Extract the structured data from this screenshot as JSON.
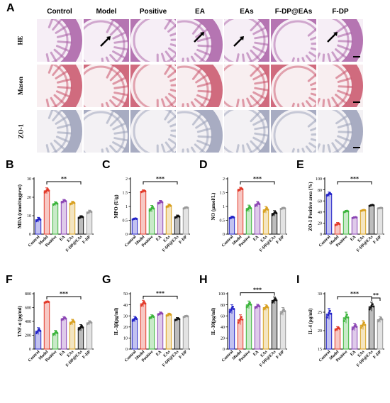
{
  "panel_a": {
    "letter": "A",
    "columns": [
      "Control",
      "Model",
      "Positive",
      "EA",
      "EAs",
      "F-DP@EAs",
      "F-DP"
    ],
    "rows": [
      {
        "label": "HE",
        "stain": "he"
      },
      {
        "label": "Mason",
        "stain": "masson"
      },
      {
        "label": "ZO-1",
        "stain": "zo1"
      }
    ],
    "arrow_tiles": [
      [
        0,
        1
      ],
      [
        0,
        1
      ],
      [
        0,
        3
      ],
      [
        0,
        3
      ],
      [
        0,
        4
      ],
      [
        0,
        6
      ],
      [
        0,
        6
      ]
    ],
    "stain_colors": {
      "he": "#a95fa6",
      "masson": "#c9536a",
      "zo1": "#9aa0b8"
    }
  },
  "categories": [
    "Control",
    "Model",
    "Positive",
    "EA",
    "EAs",
    "F-DP@EAs",
    "F-DP"
  ],
  "group_colors": [
    "#2323c8",
    "#e23a2a",
    "#3cb43c",
    "#8c46b4",
    "#d8a020",
    "#111111",
    "#9a9a9a"
  ],
  "chart_data": [
    {
      "letter": "B",
      "type": "bar",
      "ylabel": "MDA (nmol/mgprot)",
      "ylim": [
        0,
        30
      ],
      "yticks": [
        0,
        10,
        20,
        30
      ],
      "values": [
        7.8,
        23.5,
        16.5,
        17.8,
        16.8,
        9.2,
        12.0
      ],
      "errors": [
        1.3,
        1.6,
        1.0,
        1.0,
        1.0,
        0.8,
        1.0
      ],
      "significance": [
        {
          "from": 1,
          "to": 5,
          "label": "**"
        }
      ]
    },
    {
      "letter": "C",
      "type": "bar",
      "ylabel": "MPO (U/g)",
      "ylim": [
        0,
        2.0
      ],
      "yticks": [
        0.0,
        0.5,
        1.0,
        1.5,
        2.0
      ],
      "values": [
        0.55,
        1.55,
        0.92,
        1.15,
        1.02,
        0.63,
        0.95
      ],
      "errors": [
        0.03,
        0.05,
        0.12,
        0.07,
        0.07,
        0.06,
        0.04
      ],
      "significance": [
        {
          "from": 1,
          "to": 5,
          "label": "***"
        }
      ]
    },
    {
      "letter": "D",
      "type": "bar",
      "ylabel": "NO (μmol/L)",
      "ylim": [
        0.0,
        2.0
      ],
      "yticks": [
        0.0,
        0.5,
        1.0,
        1.5,
        2.0
      ],
      "values": [
        0.6,
        1.62,
        0.93,
        1.08,
        0.88,
        0.75,
        0.93
      ],
      "errors": [
        0.05,
        0.07,
        0.12,
        0.1,
        0.12,
        0.1,
        0.04
      ],
      "significance": [
        {
          "from": 1,
          "to": 5,
          "label": "***"
        }
      ]
    },
    {
      "letter": "E",
      "type": "bar",
      "ylabel": "ZO-1 Positive area (%)",
      "ylim": [
        0,
        100
      ],
      "yticks": [
        0,
        20,
        40,
        60,
        80,
        100
      ],
      "values": [
        72,
        18,
        41,
        30,
        43,
        52,
        47
      ],
      "errors": [
        4,
        3,
        2,
        1.5,
        1.5,
        1.5,
        1
      ],
      "significance": [
        {
          "from": 1,
          "to": 5,
          "label": "***"
        }
      ]
    },
    {
      "letter": "F",
      "type": "bar",
      "ylabel": "TNF-α (pg/ml)",
      "ylim": [
        0,
        800
      ],
      "yticks": [
        0,
        200,
        400,
        600,
        800
      ],
      "values": [
        260,
        680,
        230,
        440,
        390,
        310,
        380
      ],
      "errors": [
        50,
        15,
        40,
        30,
        40,
        45,
        30
      ],
      "significance": [
        {
          "from": 1,
          "to": 5,
          "label": "***"
        }
      ]
    },
    {
      "letter": "G",
      "type": "bar",
      "ylabel": "IL-1β(pg/ml)",
      "ylim": [
        0,
        50
      ],
      "yticks": [
        0,
        10,
        20,
        30,
        40,
        50
      ],
      "values": [
        27,
        41,
        29,
        32,
        31,
        27,
        29.5
      ],
      "errors": [
        2.5,
        3.0,
        2.0,
        1.5,
        1.5,
        1.5,
        1.0
      ],
      "significance": [
        {
          "from": 1,
          "to": 5,
          "label": "***"
        }
      ]
    },
    {
      "letter": "H",
      "type": "bar",
      "ylabel": "IL-10(pg/ml)",
      "ylim": [
        0,
        100
      ],
      "yticks": [
        0,
        20,
        40,
        60,
        80,
        100
      ],
      "values": [
        72,
        53,
        80,
        77,
        75,
        88,
        68
      ],
      "errors": [
        8,
        9,
        7,
        4,
        5,
        6,
        7
      ],
      "significance": [
        {
          "from": 1,
          "to": 5,
          "label": "***"
        }
      ]
    },
    {
      "letter": "I",
      "type": "bar",
      "ylabel": "IL-4 (pg/ml)",
      "ylim": [
        15,
        30
      ],
      "yticks": [
        15,
        20,
        25,
        30
      ],
      "values": [
        24.5,
        20.5,
        23.5,
        21.0,
        21.5,
        26.5,
        23.0
      ],
      "errors": [
        1.5,
        0.6,
        1.5,
        1.0,
        1.2,
        1.2,
        0.8
      ],
      "significance": [
        {
          "from": 1,
          "to": 5,
          "label": "***"
        },
        {
          "from": 5,
          "to": 6,
          "label": "**"
        }
      ]
    }
  ]
}
